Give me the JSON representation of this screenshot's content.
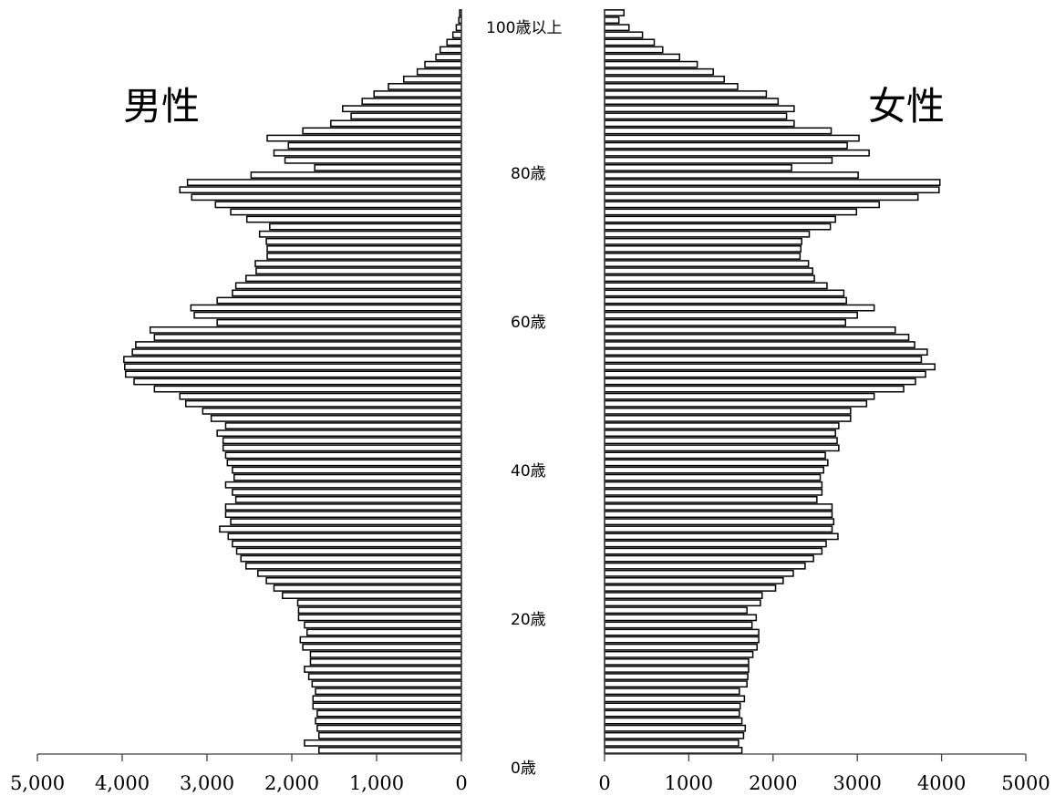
{
  "chart_data": {
    "type": "bar",
    "orientation": "horizontal",
    "layout": "population-pyramid",
    "categories_note": "ages 0..99 and 100以上 (bottom to top)",
    "series": [
      {
        "name": "男性",
        "values": [
          1680,
          1850,
          1680,
          1700,
          1720,
          1700,
          1750,
          1750,
          1720,
          1760,
          1800,
          1850,
          1780,
          1780,
          1870,
          1900,
          1820,
          1850,
          1920,
          1920,
          1930,
          2110,
          2210,
          2300,
          2400,
          2540,
          2600,
          2650,
          2700,
          2750,
          2850,
          2720,
          2780,
          2780,
          2660,
          2700,
          2780,
          2680,
          2700,
          2760,
          2780,
          2810,
          2810,
          2880,
          2780,
          2950,
          3050,
          3250,
          3320,
          3620,
          3860,
          3960,
          3970,
          3980,
          3880,
          3840,
          3620,
          3670,
          2880,
          3150,
          3190,
          2880,
          2700,
          2660,
          2540,
          2420,
          2430,
          2290,
          2290,
          2300,
          2380,
          2260,
          2530,
          2720,
          2900,
          3180,
          3320,
          3230,
          2480,
          1730,
          2080,
          2210,
          2040,
          2290,
          1870,
          1540,
          1300,
          1400,
          1170,
          1030,
          860,
          680,
          520,
          430,
          300,
          250,
          170,
          100,
          60,
          30,
          20
        ]
      },
      {
        "name": "女性",
        "values": [
          1630,
          1590,
          1650,
          1670,
          1630,
          1600,
          1610,
          1660,
          1600,
          1690,
          1700,
          1710,
          1710,
          1760,
          1810,
          1830,
          1830,
          1750,
          1800,
          1690,
          1850,
          1870,
          2030,
          2120,
          2240,
          2380,
          2480,
          2580,
          2630,
          2770,
          2700,
          2720,
          2700,
          2700,
          2520,
          2580,
          2580,
          2560,
          2600,
          2650,
          2620,
          2780,
          2760,
          2740,
          2780,
          2920,
          2920,
          3110,
          3200,
          3550,
          3690,
          3810,
          3920,
          3760,
          3830,
          3680,
          3610,
          3450,
          2860,
          3000,
          3200,
          2870,
          2840,
          2640,
          2490,
          2470,
          2420,
          2320,
          2330,
          2340,
          2430,
          2680,
          2740,
          2990,
          3260,
          3720,
          3970,
          3980,
          3010,
          2220,
          2700,
          3140,
          2880,
          3020,
          2690,
          2250,
          2160,
          2250,
          2060,
          1920,
          1580,
          1420,
          1290,
          1100,
          890,
          690,
          590,
          450,
          290,
          170,
          230
        ]
      }
    ],
    "male_axis": {
      "ticks": [
        "5,000",
        "4,000",
        "3,000",
        "2,000",
        "1,000",
        "0"
      ],
      "range": [
        0,
        5000
      ],
      "reversed": true
    },
    "female_axis": {
      "ticks": [
        "0",
        "1000",
        "2000",
        "3000",
        "4000",
        "5000"
      ],
      "range": [
        0,
        5000
      ]
    },
    "age_labels": [
      "0歳",
      "20歳",
      "40歳",
      "60歳",
      "80歳",
      "100歳以上"
    ],
    "male_label": "男性",
    "female_label": "女性",
    "bar_fill": "#ffffff",
    "bar_stroke": "#000000"
  }
}
